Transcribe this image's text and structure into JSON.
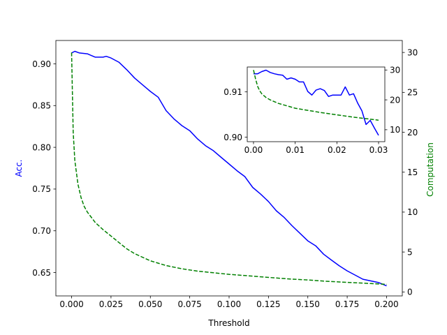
{
  "chart_data": [
    {
      "type": "line",
      "role": "main",
      "xlabel": "Threshold",
      "ylabel": "Acc.",
      "ylabel_right": "Computation",
      "xlim": [
        -0.01,
        0.21
      ],
      "ylim": [
        0.622,
        0.928
      ],
      "ylim_right": [
        -0.5,
        31.5
      ],
      "xticks": [
        0.0,
        0.025,
        0.05,
        0.075,
        0.1,
        0.125,
        0.15,
        0.175,
        0.2
      ],
      "xtick_labels": [
        "0.000",
        "0.025",
        "0.050",
        "0.075",
        "0.100",
        "0.125",
        "0.150",
        "0.175",
        "0.200"
      ],
      "yticks": [
        0.65,
        0.7,
        0.75,
        0.8,
        0.85,
        0.9
      ],
      "ytick_labels": [
        "0.65",
        "0.70",
        "0.75",
        "0.80",
        "0.85",
        "0.90"
      ],
      "yticks_right": [
        0,
        5,
        10,
        15,
        20,
        25,
        30
      ],
      "ytick_labels_right": [
        "0",
        "5",
        "10",
        "15",
        "20",
        "25",
        "30"
      ],
      "colors": {
        "accuracy": "#0000ff",
        "computation": "#008000"
      },
      "series": [
        {
          "axis": "left",
          "style": "solid",
          "x": [
            0.0,
            0.002,
            0.005,
            0.01,
            0.015,
            0.02,
            0.022,
            0.025,
            0.03,
            0.035,
            0.04,
            0.045,
            0.05,
            0.055,
            0.06,
            0.065,
            0.07,
            0.075,
            0.08,
            0.085,
            0.09,
            0.095,
            0.1,
            0.105,
            0.11,
            0.115,
            0.12,
            0.125,
            0.13,
            0.135,
            0.14,
            0.145,
            0.15,
            0.155,
            0.16,
            0.165,
            0.17,
            0.175,
            0.18,
            0.185,
            0.19,
            0.195,
            0.2
          ],
          "y": [
            0.913,
            0.915,
            0.913,
            0.912,
            0.908,
            0.908,
            0.909,
            0.907,
            0.902,
            0.893,
            0.883,
            0.875,
            0.867,
            0.86,
            0.844,
            0.834,
            0.826,
            0.82,
            0.81,
            0.802,
            0.796,
            0.788,
            0.78,
            0.772,
            0.765,
            0.752,
            0.744,
            0.735,
            0.724,
            0.716,
            0.706,
            0.697,
            0.688,
            0.682,
            0.672,
            0.665,
            0.658,
            0.652,
            0.647,
            0.642,
            0.64,
            0.638,
            0.634
          ]
        },
        {
          "axis": "right",
          "style": "dashed",
          "x": [
            0.0,
            0.001,
            0.002,
            0.004,
            0.006,
            0.008,
            0.01,
            0.015,
            0.02,
            0.025,
            0.03,
            0.035,
            0.04,
            0.05,
            0.06,
            0.07,
            0.08,
            0.09,
            0.1,
            0.11,
            0.12,
            0.13,
            0.14,
            0.15,
            0.16,
            0.17,
            0.18,
            0.19,
            0.2
          ],
          "y": [
            30.0,
            20.0,
            16.5,
            13.5,
            11.8,
            10.7,
            10.0,
            8.7,
            7.8,
            7.0,
            6.2,
            5.4,
            4.8,
            3.9,
            3.3,
            2.9,
            2.6,
            2.4,
            2.2,
            2.05,
            1.9,
            1.75,
            1.6,
            1.5,
            1.35,
            1.25,
            1.15,
            1.05,
            0.95
          ]
        }
      ]
    },
    {
      "type": "line",
      "role": "inset",
      "xlim": [
        -0.0015,
        0.0315
      ],
      "ylim": [
        0.899,
        0.9155
      ],
      "ylim_right": [
        6,
        31
      ],
      "xticks": [
        0.0,
        0.01,
        0.02,
        0.03
      ],
      "xtick_labels": [
        "0.00",
        "0.01",
        "0.02",
        "0.03"
      ],
      "yticks": [
        0.9,
        0.91
      ],
      "ytick_labels": [
        "0.90",
        "0.91"
      ],
      "yticks_right": [
        10,
        20,
        30
      ],
      "ytick_labels_right": [
        "10",
        "20",
        "30"
      ],
      "series": [
        {
          "axis": "left",
          "style": "solid",
          "x": [
            0.0,
            0.001,
            0.002,
            0.003,
            0.004,
            0.005,
            0.006,
            0.007,
            0.008,
            0.009,
            0.01,
            0.011,
            0.012,
            0.013,
            0.014,
            0.015,
            0.016,
            0.017,
            0.018,
            0.019,
            0.02,
            0.021,
            0.022,
            0.023,
            0.024,
            0.025,
            0.026,
            0.027,
            0.028,
            0.029,
            0.03
          ],
          "y": [
            0.914,
            0.914,
            0.9145,
            0.9148,
            0.9143,
            0.914,
            0.9138,
            0.9137,
            0.9128,
            0.9131,
            0.9128,
            0.9122,
            0.9122,
            0.9101,
            0.9093,
            0.9104,
            0.9107,
            0.9103,
            0.909,
            0.9093,
            0.9093,
            0.9093,
            0.9111,
            0.9093,
            0.9096,
            0.9075,
            0.9058,
            0.9028,
            0.9037,
            0.902,
            0.9004
          ]
        },
        {
          "axis": "right",
          "style": "dashed",
          "x": [
            0.0,
            0.0005,
            0.001,
            0.0015,
            0.002,
            0.003,
            0.004,
            0.006,
            0.008,
            0.01,
            0.013,
            0.016,
            0.02,
            0.024,
            0.027,
            0.03
          ],
          "y": [
            30.0,
            27.0,
            24.5,
            23.0,
            22.0,
            20.8,
            20.0,
            18.8,
            18.0,
            17.2,
            16.5,
            15.8,
            15.0,
            14.2,
            13.7,
            13.2
          ]
        }
      ]
    }
  ]
}
